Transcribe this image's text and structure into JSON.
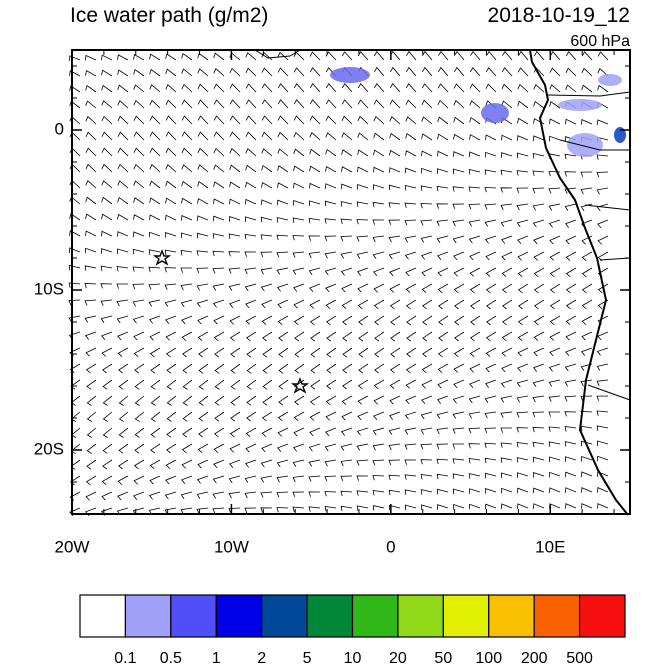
{
  "map": {
    "title": "Ice water path (g/m2)",
    "date": "2018-10-19_12",
    "level": "600 hPa",
    "lon_range": [
      -20,
      15
    ],
    "lat_range": [
      -24,
      5
    ],
    "lon_ticks": [
      {
        "value": -20,
        "label": "20W"
      },
      {
        "value": -10,
        "label": "10W"
      },
      0,
      {
        "value": 10,
        "label": "10E"
      }
    ],
    "lat_ticks": [
      0,
      {
        "value": -10,
        "label": "10S"
      },
      {
        "value": -20,
        "label": "20S"
      }
    ],
    "colorbar": {
      "colors": [
        "#ffffff",
        "#a0a0f8",
        "#5050f8",
        "#0000e8",
        "#004898",
        "#008838",
        "#30b818",
        "#90d818",
        "#e0f000",
        "#f8c000",
        "#f86000",
        "#f81010"
      ],
      "labels": [
        0.1,
        0.5,
        1,
        2,
        5,
        10,
        20,
        50,
        100,
        200,
        500
      ]
    }
  }
}
